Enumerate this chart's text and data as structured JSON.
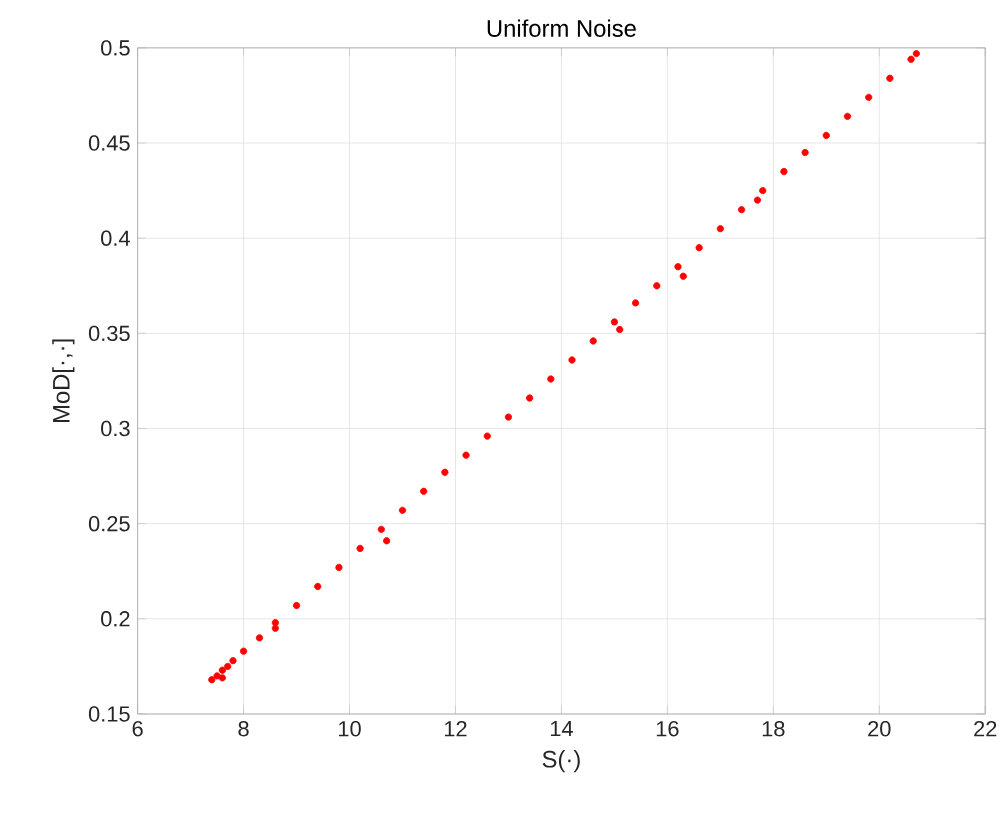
{
  "chart_data": {
    "type": "scatter",
    "title": "Uniform Noise",
    "xlabel": "S(·)",
    "ylabel": "MoD[·,·]",
    "xlim": [
      6,
      22
    ],
    "xticks": [
      6,
      8,
      10,
      12,
      14,
      16,
      18,
      20,
      22
    ],
    "ylim": [
      0.15,
      0.5
    ],
    "yticks": [
      0.15,
      0.2,
      0.25,
      0.3,
      0.35,
      0.4,
      0.45,
      0.5
    ],
    "grid": true,
    "marker": "circle",
    "series": [
      {
        "color": "#ff0000",
        "x": [
          7.4,
          7.5,
          7.6,
          7.7,
          7.8,
          8.0,
          8.3,
          8.6,
          9.0,
          9.4,
          9.8,
          10.2,
          10.6,
          11.0,
          11.4,
          11.8,
          12.2,
          12.6,
          13.0,
          13.4,
          13.8,
          14.2,
          14.6,
          15.0,
          15.4,
          15.8,
          16.2,
          16.6,
          17.0,
          17.4,
          17.8,
          18.2,
          18.6,
          19.0,
          19.4,
          19.8,
          20.2,
          20.6,
          20.7,
          10.7,
          16.3,
          17.7,
          15.1,
          8.6,
          7.6
        ],
        "values": [
          0.168,
          0.17,
          0.173,
          0.175,
          0.178,
          0.183,
          0.19,
          0.198,
          0.207,
          0.217,
          0.227,
          0.237,
          0.247,
          0.257,
          0.267,
          0.277,
          0.286,
          0.296,
          0.306,
          0.316,
          0.326,
          0.336,
          0.346,
          0.356,
          0.366,
          0.375,
          0.385,
          0.395,
          0.405,
          0.415,
          0.425,
          0.435,
          0.445,
          0.454,
          0.464,
          0.474,
          0.484,
          0.494,
          0.497,
          0.241,
          0.38,
          0.42,
          0.352,
          0.195,
          0.169
        ]
      }
    ]
  }
}
